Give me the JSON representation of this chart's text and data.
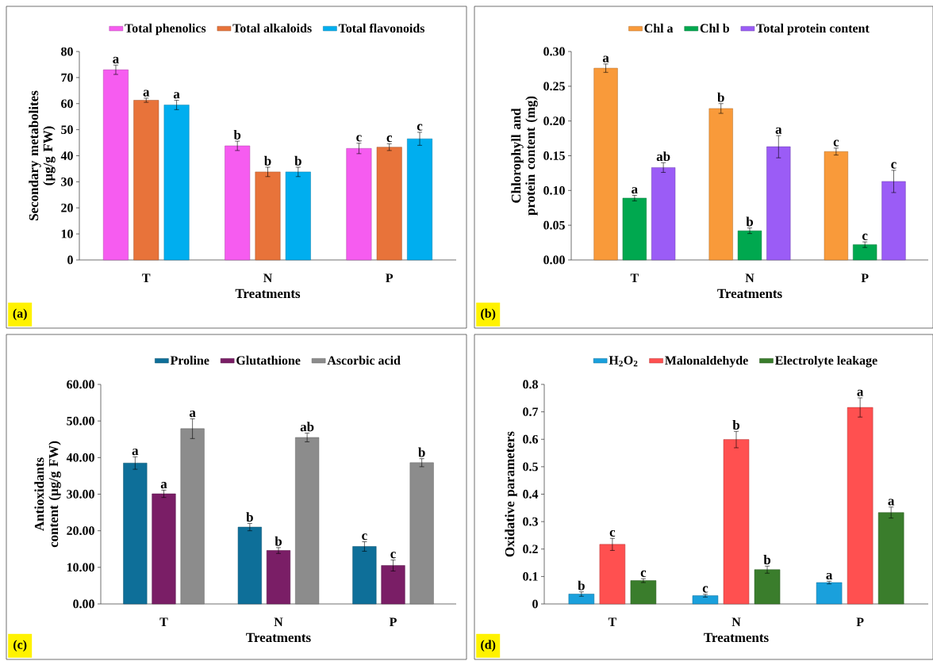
{
  "chart_data": [
    {
      "type": "bar",
      "categories": [
        "T",
        "N",
        "P"
      ],
      "xlabel": "Treatments",
      "ylabel": "Secondary metabolites (µg/g FW)",
      "ylim": [
        0,
        80
      ],
      "yticks": [
        0,
        10,
        20,
        30,
        40,
        50,
        60,
        70,
        80
      ],
      "legend": "top",
      "annotations": [
        "(a)"
      ],
      "series": [
        {
          "name": "Total phenolics",
          "color": "#f65cf0",
          "values": [
            73,
            43.8,
            42.8
          ],
          "errors": [
            1.8,
            1.8,
            2
          ],
          "value_labels": [
            "a",
            "b",
            "c"
          ]
        },
        {
          "name": "Total alkaloids",
          "color": "#e8733a",
          "values": [
            61.3,
            33.8,
            43.3
          ],
          "errors": [
            0.8,
            1.8,
            1.3
          ],
          "value_labels": [
            "a",
            "b",
            "c"
          ]
        },
        {
          "name": "Total flavonoids",
          "color": "#00aeef",
          "values": [
            59.5,
            33.8,
            46.5
          ],
          "errors": [
            1.8,
            1.8,
            2.5
          ],
          "value_labels": [
            "a",
            "b",
            "c"
          ]
        }
      ]
    },
    {
      "type": "bar",
      "categories": [
        "T",
        "N",
        "P"
      ],
      "xlabel": "Treatments",
      "ylabel": "Chlorophyll and protein content (mg)",
      "ylim": [
        0,
        0.3
      ],
      "yticks": [
        {
          "value": 0,
          "label": "0.00"
        },
        {
          "value": 0.05,
          "label": "0.05"
        },
        {
          "value": 0.1,
          "label": "0.10"
        },
        {
          "value": 0.15,
          "label": "0.15"
        },
        {
          "value": 0.2,
          "label": "0.20"
        },
        {
          "value": 0.25,
          "label": "0.25"
        },
        {
          "value": 0.3,
          "label": "0.30"
        }
      ],
      "legend": "top",
      "annotations": [
        "(b)"
      ],
      "series": [
        {
          "name": "Chl a",
          "color": "#f99a3a",
          "values": [
            0.276,
            0.218,
            0.156
          ],
          "errors": [
            0.006,
            0.007,
            0.005
          ],
          "value_labels": [
            "a",
            "b",
            "c"
          ]
        },
        {
          "name": "Chl b",
          "color": "#00a84f",
          "values": [
            0.089,
            0.042,
            0.022
          ],
          "errors": [
            0.004,
            0.004,
            0.004
          ],
          "value_labels": [
            "a",
            "b",
            "c"
          ]
        },
        {
          "name": "Total protein content",
          "color": "#9b5cf6",
          "values": [
            0.133,
            0.163,
            0.113
          ],
          "errors": [
            0.007,
            0.016,
            0.016
          ],
          "value_labels": [
            "ab",
            "a",
            "c"
          ]
        }
      ]
    },
    {
      "type": "bar",
      "categories": [
        "T",
        "N",
        "P"
      ],
      "xlabel": "Treatments",
      "ylabel": "Antioxidants content (µg/g FW)",
      "ylim": [
        0,
        60
      ],
      "yticks": [
        {
          "value": 0,
          "label": "0.00"
        },
        {
          "value": 10,
          "label": "10.00"
        },
        {
          "value": 20,
          "label": "20.00"
        },
        {
          "value": 30,
          "label": "30.00"
        },
        {
          "value": 40,
          "label": "40.00"
        },
        {
          "value": 50,
          "label": "50.00"
        },
        {
          "value": 60,
          "label": "60.00"
        }
      ],
      "legend": "top",
      "annotations": [
        "(c)"
      ],
      "series": [
        {
          "name": "Proline",
          "color": "#0e6f99",
          "values": [
            38.5,
            21,
            15.7
          ],
          "errors": [
            1.7,
            1,
            1.3
          ],
          "value_labels": [
            "a",
            "b",
            "c"
          ]
        },
        {
          "name": "Glutathione",
          "color": "#7a1e66",
          "values": [
            30.1,
            14.6,
            10.5
          ],
          "errors": [
            1,
            0.8,
            1.5
          ],
          "value_labels": [
            "a",
            "b",
            "c"
          ]
        },
        {
          "name": "Ascorbic acid",
          "color": "#8c8c8c",
          "values": [
            47.9,
            45.5,
            38.6
          ],
          "errors": [
            2.7,
            1.2,
            1.1
          ],
          "value_labels": [
            "a",
            "ab",
            "b"
          ]
        }
      ]
    },
    {
      "type": "bar",
      "categories": [
        "T",
        "N",
        "P"
      ],
      "xlabel": "Treatments",
      "ylabel": "Oxidative parameters",
      "ylim": [
        0,
        0.8
      ],
      "yticks": [
        0,
        0.1,
        0.2,
        0.3,
        0.4,
        0.5,
        0.6,
        0.7,
        0.8
      ],
      "legend": "top",
      "annotations": [
        "(d)"
      ],
      "series": [
        {
          "name": "H$_{2}$O$_{2}$",
          "color": "#1aa0dc",
          "values": [
            0.036,
            0.03,
            0.078
          ],
          "errors": [
            0.008,
            0.005,
            0.005
          ],
          "value_labels": [
            "b",
            "c",
            "a"
          ]
        },
        {
          "name": "Malonaldehyde",
          "color": "#ff5050",
          "values": [
            0.217,
            0.599,
            0.716
          ],
          "errors": [
            0.022,
            0.03,
            0.035
          ],
          "value_labels": [
            "c",
            "b",
            "a"
          ]
        },
        {
          "name": "Electrolyte leakage",
          "color": "#3a7d2c",
          "values": [
            0.085,
            0.125,
            0.333
          ],
          "errors": [
            0.007,
            0.013,
            0.02
          ],
          "value_labels": [
            "c",
            "b",
            "a"
          ]
        }
      ]
    }
  ]
}
